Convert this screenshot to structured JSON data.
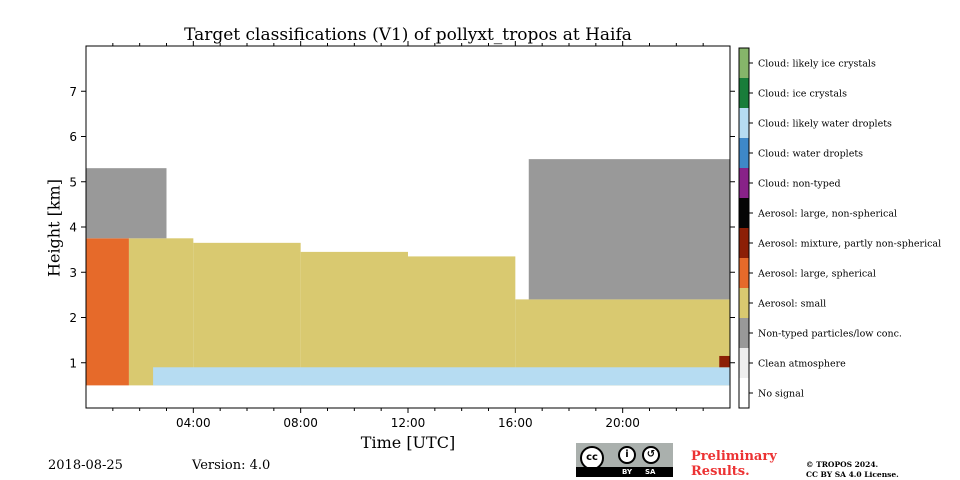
{
  "chart_data": {
    "type": "heatmap",
    "title": "Target classifications (V1) of pollyxt_tropos at Haifa",
    "xlabel": "Time [UTC]",
    "ylabel": "Height [km]",
    "x_range_hours": [
      0,
      24
    ],
    "y_range_km": [
      0,
      8
    ],
    "x_ticks": [
      {
        "value": 4,
        "label": "04:00"
      },
      {
        "value": 8,
        "label": "08:00"
      },
      {
        "value": 12,
        "label": "12:00"
      },
      {
        "value": 16,
        "label": "16:00"
      },
      {
        "value": 20,
        "label": "20:00"
      }
    ],
    "y_ticks": [
      {
        "value": 1,
        "label": "1"
      },
      {
        "value": 2,
        "label": "2"
      },
      {
        "value": 3,
        "label": "3"
      },
      {
        "value": 4,
        "label": "4"
      },
      {
        "value": 5,
        "label": "5"
      },
      {
        "value": 6,
        "label": "6"
      },
      {
        "value": 7,
        "label": "7"
      }
    ],
    "grid": false,
    "colorbar": [
      {
        "label": "No signal",
        "color": "#ffffff"
      },
      {
        "label": "Clean atmosphere",
        "color": "#eeeeee"
      },
      {
        "label": "Non-typed particles/low conc.",
        "color": "#999999"
      },
      {
        "label": "Aerosol: small",
        "color": "#d9c970"
      },
      {
        "label": "Aerosol: large, spherical",
        "color": "#e66a2a"
      },
      {
        "label": "Aerosol: mixture, partly non-spherical",
        "color": "#8c1f06"
      },
      {
        "label": "Aerosol: large, non-spherical",
        "color": "#050505"
      },
      {
        "label": "Cloud: non-typed",
        "color": "#882288"
      },
      {
        "label": "Cloud: water droplets",
        "color": "#3e88c8"
      },
      {
        "label": "Cloud: likely water droplets",
        "color": "#b6dcf2"
      },
      {
        "label": "Cloud: ice crystals",
        "color": "#197d3a"
      },
      {
        "label": "Cloud: likely ice crystals",
        "color": "#86b56a"
      }
    ],
    "regions": [
      {
        "class": "Aerosol: large, spherical",
        "t0": 0.0,
        "t1": 1.6,
        "h0": 0.5,
        "h1": 3.75
      },
      {
        "class": "Aerosol: small",
        "t0": 1.6,
        "t1": 4.0,
        "h0": 0.5,
        "h1": 3.75
      },
      {
        "class": "Aerosol: small",
        "t0": 4.0,
        "t1": 8.0,
        "h0": 0.5,
        "h1": 3.65
      },
      {
        "class": "Aerosol: small",
        "t0": 8.0,
        "t1": 12.0,
        "h0": 0.5,
        "h1": 3.45
      },
      {
        "class": "Aerosol: small",
        "t0": 12.0,
        "t1": 16.0,
        "h0": 0.5,
        "h1": 3.35
      },
      {
        "class": "Aerosol: small",
        "t0": 16.0,
        "t1": 24.0,
        "h0": 0.5,
        "h1": 2.4
      },
      {
        "class": "Non-typed particles/low conc.",
        "t0": 0.0,
        "t1": 3.0,
        "h0": 3.75,
        "h1": 5.3
      },
      {
        "class": "Non-typed particles/low conc.",
        "t0": 16.5,
        "t1": 24.0,
        "h0": 2.4,
        "h1": 5.5
      },
      {
        "class": "Cloud: likely water droplets",
        "t0": 2.5,
        "t1": 24.0,
        "h0": 0.5,
        "h1": 0.9
      },
      {
        "class": "Aerosol: mixture, partly non-spherical",
        "t0": 23.6,
        "t1": 24.0,
        "h0": 0.9,
        "h1": 1.15
      }
    ]
  },
  "footer": {
    "date": "2018-08-25",
    "version": "Version: 4.0",
    "license_cc": "cc",
    "license_by": "BY",
    "license_sa": "SA",
    "preliminary_line1": "Preliminary",
    "preliminary_line2": "Results.",
    "copyright_line1": "© TROPOS 2024.",
    "copyright_line2": "CC BY SA 4.0 License."
  }
}
